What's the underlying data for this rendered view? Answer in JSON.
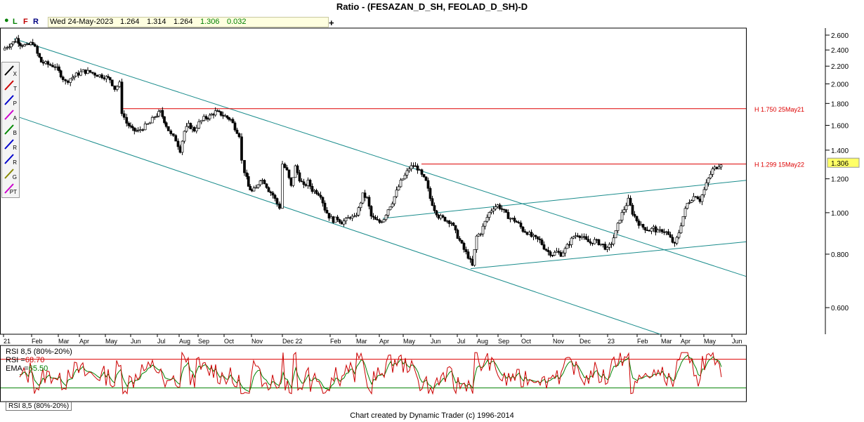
{
  "title": "Ratio - (FESAZAN_D_SH, FEOLAD_D_SH)-D",
  "toolbar_top": {
    "letters": [
      {
        "label": "L",
        "color": "#008000"
      },
      {
        "label": "F",
        "color": "#c00000"
      },
      {
        "label": "R",
        "color": "#000080"
      }
    ],
    "date": "Wed 24-May-2023",
    "open": "1.264",
    "high": "1.314",
    "low": "1.264",
    "close": "1.306",
    "change": "0.032",
    "plus_label": "+"
  },
  "tools": [
    {
      "name": "close-tool",
      "label": "X",
      "color": "#000000"
    },
    {
      "name": "trendline-tool",
      "label": "T",
      "color": "#cc0000"
    },
    {
      "name": "parallel-tool",
      "label": "P",
      "color": "#0000cc"
    },
    {
      "name": "projection-tool",
      "label": "A",
      "color": "#cc00cc"
    },
    {
      "name": "fib-b-tool",
      "label": "B",
      "color": "#008800"
    },
    {
      "name": "retrace-tool",
      "label": "R",
      "color": "#0000cc"
    },
    {
      "name": "retrace2-tool",
      "label": "R",
      "color": "#0000cc"
    },
    {
      "name": "gann-tool",
      "label": "G",
      "color": "#888800"
    },
    {
      "name": "pt-tool",
      "label": "PT",
      "color": "#cc00cc"
    }
  ],
  "chart_data": {
    "type": "candlestick",
    "scale": "log",
    "ylim": [
      0.52,
      2.7
    ],
    "y_ticks": [
      "2.600",
      "2.400",
      "2.200",
      "2.000",
      "1.800",
      "1.600",
      "1.400",
      "1.200",
      "1.000",
      "0.800",
      "0.600"
    ],
    "x_labels": [
      "21",
      "Feb",
      "Mar",
      "Apr",
      "May",
      "Jun",
      "Jul",
      "Aug",
      "Sep",
      "Oct",
      "Nov",
      "Dec 22",
      "Feb",
      "Mar",
      "Apr",
      "May",
      "Jun",
      "Jul",
      "Aug",
      "Sep",
      "Oct",
      "Nov",
      "Dec",
      "23",
      "Feb",
      "Mar",
      "Apr",
      "May",
      "Jun"
    ],
    "last_price": "1.306",
    "price_levels": [
      {
        "label": "H 1.750 25May21",
        "value": 1.75
      },
      {
        "label": "H 1.299 15May22",
        "value": 1.299
      }
    ],
    "trend_channel": [
      {
        "x1": 20,
        "y1": 2.55,
        "x2": 1062,
        "y2": 0.71
      },
      {
        "x1": 28,
        "y1": 1.67,
        "x2": 940,
        "y2": 0.52
      }
    ],
    "wedge_lines": [
      {
        "x1": 545,
        "y1": 0.97,
        "x2": 1062,
        "y2": 1.19
      },
      {
        "x1": 670,
        "y1": 0.74,
        "x2": 1062,
        "y2": 0.855
      }
    ],
    "high_lines": [
      {
        "x1": 175,
        "x2": 1062,
        "y": 1.75
      },
      {
        "x1": 600,
        "x2": 1062,
        "y": 1.299
      }
    ],
    "price_path": [
      [
        5,
        2.4
      ],
      [
        12,
        2.45
      ],
      [
        20,
        2.5
      ],
      [
        25,
        2.55
      ],
      [
        30,
        2.48
      ],
      [
        40,
        2.45
      ],
      [
        48,
        2.5
      ],
      [
        55,
        2.35
      ],
      [
        60,
        2.25
      ],
      [
        70,
        2.22
      ],
      [
        80,
        2.2
      ],
      [
        88,
        2.1
      ],
      [
        95,
        2.02
      ],
      [
        102,
        2.06
      ],
      [
        110,
        2.1
      ],
      [
        120,
        2.14
      ],
      [
        130,
        2.13
      ],
      [
        140,
        2.1
      ],
      [
        150,
        2.08
      ],
      [
        158,
        2.05
      ],
      [
        165,
        1.95
      ],
      [
        172,
        2.0
      ],
      [
        175,
        1.72
      ],
      [
        182,
        1.62
      ],
      [
        190,
        1.56
      ],
      [
        198,
        1.55
      ],
      [
        205,
        1.58
      ],
      [
        215,
        1.62
      ],
      [
        222,
        1.68
      ],
      [
        230,
        1.72
      ],
      [
        238,
        1.6
      ],
      [
        245,
        1.52
      ],
      [
        252,
        1.48
      ],
      [
        258,
        1.4
      ],
      [
        264,
        1.55
      ],
      [
        270,
        1.6
      ],
      [
        278,
        1.56
      ],
      [
        285,
        1.62
      ],
      [
        292,
        1.66
      ],
      [
        300,
        1.68
      ],
      [
        308,
        1.72
      ],
      [
        316,
        1.7
      ],
      [
        322,
        1.68
      ],
      [
        330,
        1.65
      ],
      [
        336,
        1.58
      ],
      [
        342,
        1.52
      ],
      [
        346,
        1.32
      ],
      [
        350,
        1.25
      ],
      [
        355,
        1.15
      ],
      [
        360,
        1.12
      ],
      [
        366,
        1.14
      ],
      [
        372,
        1.2
      ],
      [
        378,
        1.18
      ],
      [
        384,
        1.13
      ],
      [
        390,
        1.1
      ],
      [
        396,
        1.05
      ],
      [
        400,
        1.03
      ],
      [
        404,
        1.3
      ],
      [
        410,
        1.25
      ],
      [
        416,
        1.15
      ],
      [
        422,
        1.28
      ],
      [
        428,
        1.2
      ],
      [
        434,
        1.15
      ],
      [
        440,
        1.18
      ],
      [
        446,
        1.13
      ],
      [
        452,
        1.12
      ],
      [
        458,
        1.1
      ],
      [
        464,
        1.02
      ],
      [
        470,
        0.98
      ],
      [
        476,
        0.96
      ],
      [
        482,
        0.97
      ],
      [
        488,
        0.95
      ],
      [
        494,
        0.96
      ],
      [
        500,
        0.98
      ],
      [
        506,
        0.97
      ],
      [
        512,
        1.02
      ],
      [
        518,
        1.1
      ],
      [
        524,
        1.08
      ],
      [
        530,
        0.98
      ],
      [
        536,
        0.96
      ],
      [
        542,
        0.95
      ],
      [
        548,
        0.97
      ],
      [
        554,
        1.02
      ],
      [
        560,
        1.06
      ],
      [
        566,
        1.12
      ],
      [
        572,
        1.18
      ],
      [
        578,
        1.22
      ],
      [
        584,
        1.27
      ],
      [
        590,
        1.29
      ],
      [
        596,
        1.27
      ],
      [
        602,
        1.22
      ],
      [
        608,
        1.18
      ],
      [
        614,
        1.08
      ],
      [
        620,
        1.02
      ],
      [
        626,
        0.98
      ],
      [
        632,
        0.97
      ],
      [
        638,
        0.96
      ],
      [
        644,
        0.95
      ],
      [
        650,
        0.9
      ],
      [
        656,
        0.86
      ],
      [
        662,
        0.82
      ],
      [
        668,
        0.79
      ],
      [
        674,
        0.75
      ],
      [
        680,
        0.88
      ],
      [
        686,
        0.9
      ],
      [
        692,
        0.95
      ],
      [
        698,
        1.0
      ],
      [
        704,
        1.03
      ],
      [
        710,
        1.04
      ],
      [
        716,
        1.02
      ],
      [
        722,
        0.99
      ],
      [
        728,
        0.97
      ],
      [
        734,
        0.96
      ],
      [
        740,
        0.94
      ],
      [
        746,
        0.91
      ],
      [
        752,
        0.9
      ],
      [
        758,
        0.88
      ],
      [
        764,
        0.87
      ],
      [
        770,
        0.86
      ],
      [
        776,
        0.83
      ],
      [
        782,
        0.81
      ],
      [
        788,
        0.8
      ],
      [
        794,
        0.81
      ],
      [
        800,
        0.8
      ],
      [
        806,
        0.82
      ],
      [
        812,
        0.85
      ],
      [
        818,
        0.88
      ],
      [
        824,
        0.89
      ],
      [
        830,
        0.88
      ],
      [
        836,
        0.86
      ],
      [
        842,
        0.85
      ],
      [
        848,
        0.86
      ],
      [
        854,
        0.85
      ],
      [
        860,
        0.84
      ],
      [
        866,
        0.82
      ],
      [
        872,
        0.85
      ],
      [
        878,
        0.9
      ],
      [
        884,
        0.97
      ],
      [
        890,
        1.02
      ],
      [
        896,
        1.07
      ],
      [
        902,
        1.0
      ],
      [
        908,
        0.96
      ],
      [
        914,
        0.93
      ],
      [
        920,
        0.92
      ],
      [
        926,
        0.91
      ],
      [
        932,
        0.92
      ],
      [
        938,
        0.9
      ],
      [
        944,
        0.91
      ],
      [
        950,
        0.9
      ],
      [
        956,
        0.87
      ],
      [
        962,
        0.84
      ],
      [
        968,
        0.9
      ],
      [
        974,
        0.98
      ],
      [
        980,
        1.05
      ],
      [
        986,
        1.08
      ],
      [
        992,
        1.1
      ],
      [
        998,
        1.07
      ],
      [
        1004,
        1.13
      ],
      [
        1010,
        1.2
      ],
      [
        1016,
        1.26
      ],
      [
        1022,
        1.28
      ],
      [
        1028,
        1.306
      ]
    ],
    "indicator": {
      "name": "RSI 8,5 (80%-20%)",
      "rsi_label": "RSI =",
      "rsi_value": "68.70",
      "ema_label": "EMA =",
      "ema_value": "65.50",
      "ylim": [
        0,
        100
      ],
      "upper": 80,
      "lower": 20
    }
  },
  "indicator_tab": "RSI 8,5 (80%-20%)",
  "footer": "Chart created by Dynamic Trader  (c) 1996-2014"
}
